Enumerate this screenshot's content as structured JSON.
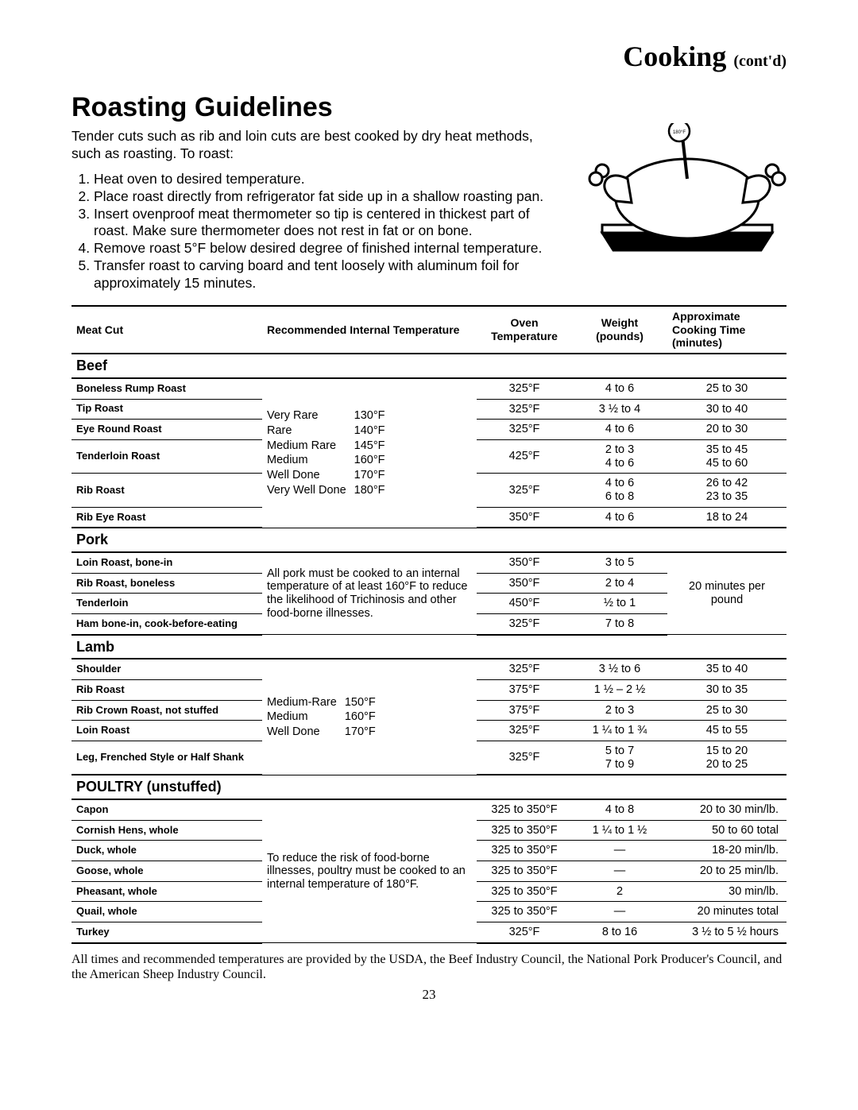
{
  "header": {
    "main": "Cooking",
    "sub": "(cont'd)"
  },
  "section_title": "Roasting Guidelines",
  "intro": "Tender cuts such as rib and loin cuts are best cooked by dry heat methods, such as roasting. To roast:",
  "steps": [
    "Heat oven to desired temperature.",
    "Place roast directly from refrigerator fat side up in a shallow roasting pan.",
    "Insert ovenproof meat thermometer so tip is centered in thickest part of roast. Make sure thermometer does not rest in fat or on bone.",
    "Remove roast 5°F below desired degree of finished internal temperature.",
    "Transfer roast to carving board and tent loosely with aluminum foil for approximately 15 minutes."
  ],
  "columns": {
    "c1": "Meat Cut",
    "c2": "Recommended Internal Temperature",
    "c3": "Oven Temperature",
    "c4": "Weight (pounds)",
    "c5": "Approximate Cooking Time (minutes)"
  },
  "illustration": {
    "thermo_label": "180°F",
    "colors": {
      "stroke": "#000000",
      "fill": "#ffffff"
    }
  },
  "beef": {
    "label": "Beef",
    "doneness": [
      [
        "Very Rare",
        "130°F"
      ],
      [
        "Rare",
        "140°F"
      ],
      [
        "Medium Rare",
        "145°F"
      ],
      [
        "Medium",
        "160°F"
      ],
      [
        "Well Done",
        "170°F"
      ],
      [
        "Very Well Done",
        "180°F"
      ]
    ],
    "rows": [
      {
        "cut": "Boneless Rump Roast",
        "oven": "325°F",
        "weight": "4 to 6",
        "time": "25 to 30"
      },
      {
        "cut": "Tip Roast",
        "oven": "325°F",
        "weight": "3 ½ to 4",
        "time": "30 to 40"
      },
      {
        "cut": "Eye Round Roast",
        "oven": "325°F",
        "weight": "4 to 6",
        "time": "20 to 30"
      },
      {
        "cut": "Tenderloin Roast",
        "oven": "425°F",
        "weight": "2 to 3\n4 to 6",
        "time": "35 to 45\n45 to 60"
      },
      {
        "cut": "Rib Roast",
        "oven": "325°F",
        "weight": "4 to 6\n6 to 8",
        "time": "26 to 42\n23 to 35"
      },
      {
        "cut": "Rib Eye Roast",
        "oven": "350°F",
        "weight": "4 to 6",
        "time": "18 to 24"
      }
    ]
  },
  "pork": {
    "label": "Pork",
    "note": "All pork must be cooked to an internal temperature of at least 160°F to reduce the likelihood of Trichinosis and other food-borne illnesses.",
    "time_note": "20 minutes per pound",
    "rows": [
      {
        "cut": "Loin Roast, bone-in",
        "oven": "350°F",
        "weight": "3 to 5"
      },
      {
        "cut": "Rib Roast, boneless",
        "oven": "350°F",
        "weight": "2 to 4"
      },
      {
        "cut": "Tenderloin",
        "oven": "450°F",
        "weight": "½ to 1"
      },
      {
        "cut": "Ham bone-in, cook-before-eating",
        "oven": "325°F",
        "weight": "7 to 8"
      }
    ]
  },
  "lamb": {
    "label": "Lamb",
    "doneness": [
      [
        "Medium-Rare",
        "150°F"
      ],
      [
        "Medium",
        "160°F"
      ],
      [
        "Well Done",
        "170°F"
      ]
    ],
    "rows": [
      {
        "cut": "Shoulder",
        "oven": "325°F",
        "weight": "3 ½ to 6",
        "time": "35 to 40"
      },
      {
        "cut": "Rib Roast",
        "oven": "375°F",
        "weight": "1 ½ – 2 ½",
        "time": "30 to 35"
      },
      {
        "cut": "Rib Crown Roast, not stuffed",
        "oven": "375°F",
        "weight": "2 to 3",
        "time": "25 to 30"
      },
      {
        "cut": "Loin Roast",
        "oven": "325°F",
        "weight": "1 ¼ to 1 ¾",
        "time": "45 to 55"
      },
      {
        "cut": "Leg, Frenched Style or Half Shank",
        "oven": "325°F",
        "weight": "5 to 7\n7 to 9",
        "time": "15 to 20\n20 to 25"
      }
    ]
  },
  "poultry": {
    "label": "POULTRY (unstuffed)",
    "note": "To reduce the risk of food-borne illnesses, poultry must be cooked to an internal temperature of 180°F.",
    "rows": [
      {
        "cut": "Capon",
        "oven": "325 to 350°F",
        "weight": "4 to 8",
        "time": "20 to 30 min/lb."
      },
      {
        "cut": "Cornish Hens, whole",
        "oven": "325 to 350°F",
        "weight": "1 ¼ to 1 ½",
        "time": "50 to 60 total"
      },
      {
        "cut": "Duck, whole",
        "oven": "325 to 350°F",
        "weight": "—",
        "time": "18-20 min/lb."
      },
      {
        "cut": "Goose, whole",
        "oven": "325 to 350°F",
        "weight": "—",
        "time": "20 to 25 min/lb."
      },
      {
        "cut": "Pheasant, whole",
        "oven": "325 to 350°F",
        "weight": "2",
        "time": "30 min/lb."
      },
      {
        "cut": "Quail, whole",
        "oven": "325 to 350°F",
        "weight": "—",
        "time": "20 minutes total"
      },
      {
        "cut": "Turkey",
        "oven": "325°F",
        "weight": "8 to 16",
        "time": "3 ½ to 5 ½ hours"
      }
    ]
  },
  "footnote": "All times and recommended temperatures are provided by the USDA, the Beef Industry Council, the National Pork Producer's Council, and the American Sheep Industry Council.",
  "page_number": "23",
  "styling": {
    "page_bg": "#ffffff",
    "text_color": "#000000",
    "border_heavy": "2px solid #000",
    "border_light": "1px solid #000",
    "body_font": "Arial",
    "header_font": "Georgia",
    "footnote_font": "Times New Roman"
  }
}
